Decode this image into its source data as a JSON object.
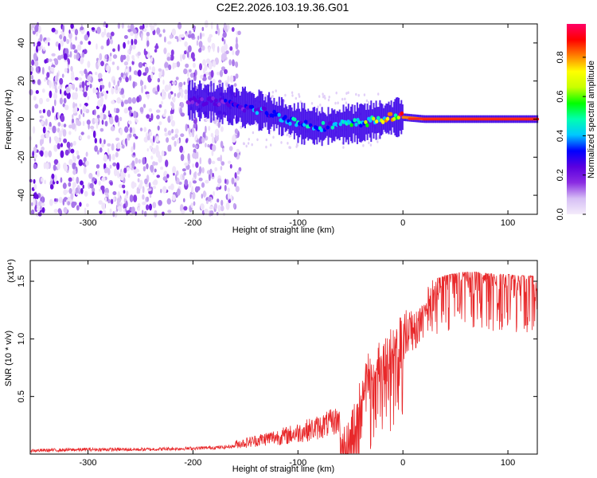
{
  "title": "C2E2.2026.103.19.36.G01",
  "chart_data": [
    {
      "type": "heatmap",
      "name": "spectrogram",
      "xlabel": "Height of straight line (km)",
      "ylabel": "Frequency (Hz)",
      "xlim": [
        -355,
        128
      ],
      "ylim": [
        -50,
        50
      ],
      "xticks": [
        -300,
        -200,
        -100,
        0,
        100
      ],
      "xtick_labels": [
        "-300",
        "-200",
        "-100",
        "0",
        "100"
      ],
      "yticks": [
        -40,
        -20,
        0,
        20,
        40
      ],
      "ytick_labels": [
        "-40",
        "-20",
        "0",
        "20",
        "40"
      ],
      "colorbar": {
        "label": "Normalized spectral amplitude",
        "range": [
          0,
          0.97
        ],
        "ticks": [
          0,
          0.2,
          0.4,
          0.6,
          0.8
        ],
        "tick_labels": [
          "0.0",
          "0.2",
          "0.4",
          "0.6",
          "0.8"
        ],
        "colors": [
          "#f4ecfb",
          "#d6bff5",
          "#8a2be2",
          "#5a00e0",
          "#0000ff",
          "#00c8ff",
          "#00ffb0",
          "#00ff00",
          "#c8ff00",
          "#ffff00",
          "#ff8000",
          "#ff0000",
          "#ff0066"
        ]
      },
      "noise_region_x": [
        -355,
        -155
      ],
      "carrier_track": {
        "x": [
          -205,
          -180,
          -160,
          -140,
          -120,
          -100,
          -80,
          -60,
          -40,
          -20,
          -10,
          0,
          20,
          60,
          100,
          128
        ],
        "freq": [
          10,
          9,
          7,
          5,
          2,
          -2,
          -4,
          -3,
          -2,
          0,
          1,
          1,
          0,
          0,
          0,
          0
        ],
        "amplitude": [
          0.2,
          0.25,
          0.3,
          0.35,
          0.4,
          0.45,
          0.4,
          0.45,
          0.5,
          0.7,
          0.75,
          0.8,
          0.85,
          0.9,
          0.92,
          0.9
        ]
      }
    },
    {
      "type": "line",
      "name": "snr",
      "xlabel": "Height of straight line (km)",
      "ylabel": "SNR (10 * v/v)",
      "y_multiplier": "(x10⁴)",
      "xlim": [
        -355,
        128
      ],
      "ylim": [
        0,
        1.68
      ],
      "xticks": [
        -300,
        -200,
        -100,
        0,
        100
      ],
      "xtick_labels": [
        "-300",
        "-200",
        "-100",
        "0",
        "100"
      ],
      "yticks": [
        0.5,
        1.0,
        1.5
      ],
      "ytick_labels": [
        "0.5",
        "1.0",
        "1.5"
      ],
      "color": "#e8282a",
      "series": [
        {
          "name": "SNR",
          "x": [
            -355,
            -300,
            -290,
            -250,
            -200,
            -170,
            -150,
            -130,
            -110,
            -100,
            -90,
            -80,
            -70,
            -60,
            -55,
            -50,
            -45,
            -40,
            -35,
            -30,
            -25,
            -20,
            -15,
            -10,
            -5,
            0,
            5,
            10,
            15,
            20,
            25,
            30,
            40,
            50,
            60,
            70,
            80,
            90,
            100,
            110,
            120,
            128
          ],
          "values": [
            0.03,
            0.04,
            0.04,
            0.04,
            0.05,
            0.06,
            0.08,
            0.11,
            0.13,
            0.15,
            0.17,
            0.19,
            0.22,
            0.25,
            0.3,
            0.35,
            0.5,
            0.7,
            0.85,
            0.95,
            1.0,
            1.02,
            1.05,
            1.1,
            1.15,
            1.25,
            1.3,
            1.33,
            1.38,
            1.45,
            1.5,
            1.52,
            1.55,
            1.57,
            1.58,
            1.58,
            1.57,
            1.56,
            1.56,
            1.55,
            1.55,
            1.54
          ]
        }
      ]
    }
  ]
}
